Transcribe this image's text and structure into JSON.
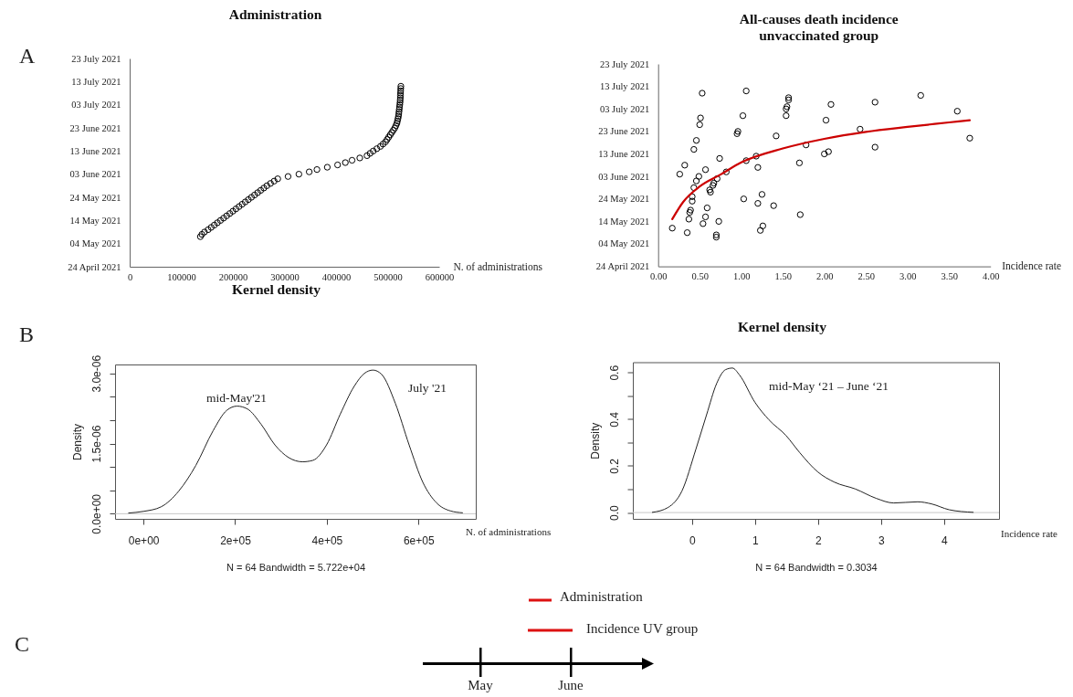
{
  "chart_data": [
    {
      "type": "scatter",
      "orientation": "horizontal",
      "title": "Administration",
      "xlabel": "N. of administrations",
      "marker": "circle",
      "xlim": [
        0,
        600000
      ],
      "xticks": [
        0,
        100000,
        200000,
        300000,
        400000,
        500000,
        600000
      ],
      "ylim": [
        "2021-04-24",
        "2021-07-23"
      ],
      "yticks": [
        {
          "value": "2021-04-24",
          "label": "24 April 2021"
        },
        {
          "value": "2021-05-04",
          "label": "04 May 2021"
        },
        {
          "value": "2021-05-14",
          "label": "14 May 2021"
        },
        {
          "value": "2021-05-24",
          "label": "24 May 2021"
        },
        {
          "value": "2021-06-03",
          "label": "03 June 2021"
        },
        {
          "value": "2021-06-13",
          "label": "13 June 2021"
        },
        {
          "value": "2021-06-23",
          "label": "23 June 2021"
        },
        {
          "value": "2021-07-03",
          "label": "03 July 2021"
        },
        {
          "value": "2021-07-13",
          "label": "13 July 2021"
        },
        {
          "value": "2021-07-23",
          "label": "23 July 2021"
        }
      ],
      "annotations": [
        "A"
      ],
      "series": [
        {
          "color": "#000000",
          "values": [
            137000,
            140000,
            145000,
            152000,
            158000,
            164000,
            170000,
            176000,
            182000,
            188000,
            194000,
            200000,
            206000,
            212000,
            218000,
            224000,
            230000,
            236000,
            242000,
            248000,
            254000,
            260000,
            266000,
            273000,
            280000,
            287000,
            307000,
            328000,
            348000,
            363000,
            383000,
            403000,
            418000,
            431000,
            446000,
            460000,
            466000,
            472000,
            479000,
            486000,
            491000,
            496000,
            499000,
            502000,
            505000,
            508000,
            511000,
            514000,
            516000,
            518000,
            519000,
            520000,
            521000,
            521500,
            522000,
            522500,
            523000,
            523500,
            524000,
            524300,
            524600,
            524800,
            525000,
            525200,
            525400,
            525600
          ],
          "x": [
            "2021-05-07",
            "2021-05-08",
            "2021-05-09",
            "2021-05-10",
            "2021-05-11",
            "2021-05-12",
            "2021-05-13",
            "2021-05-14",
            "2021-05-15",
            "2021-05-16",
            "2021-05-17",
            "2021-05-18",
            "2021-05-19",
            "2021-05-20",
            "2021-05-21",
            "2021-05-22",
            "2021-05-23",
            "2021-05-24",
            "2021-05-25",
            "2021-05-26",
            "2021-05-27",
            "2021-05-28",
            "2021-05-29",
            "2021-05-30",
            "2021-05-31",
            "2021-06-01",
            "2021-06-02",
            "2021-06-03",
            "2021-06-04",
            "2021-06-05",
            "2021-06-06",
            "2021-06-07",
            "2021-06-08",
            "2021-06-09",
            "2021-06-10",
            "2021-06-11",
            "2021-06-12",
            "2021-06-13",
            "2021-06-14",
            "2021-06-15",
            "2021-06-16",
            "2021-06-17",
            "2021-06-18",
            "2021-06-19",
            "2021-06-20",
            "2021-06-21",
            "2021-06-22",
            "2021-06-23",
            "2021-06-24",
            "2021-06-25",
            "2021-06-26",
            "2021-06-27",
            "2021-06-28",
            "2021-06-29",
            "2021-06-30",
            "2021-07-01",
            "2021-07-02",
            "2021-07-03",
            "2021-07-04",
            "2021-07-05",
            "2021-07-06",
            "2021-07-07",
            "2021-07-08",
            "2021-07-09",
            "2021-07-10",
            "2021-07-11"
          ]
        }
      ]
    },
    {
      "type": "scatter",
      "orientation": "horizontal",
      "title": "All-causes death incidence\nunvaccinated group",
      "xlabel": "Incidence rate",
      "marker": "circle",
      "xlim": [
        0,
        4
      ],
      "xticks": [
        {
          "value": 0,
          "label": "0.00"
        },
        {
          "value": 0.5,
          "label": "0.50"
        },
        {
          "value": 1,
          "label": "1.00"
        },
        {
          "value": 1.5,
          "label": "1.50"
        },
        {
          "value": 2,
          "label": "2.00"
        },
        {
          "value": 2.5,
          "label": "2.50"
        },
        {
          "value": 3,
          "label": "3.00"
        },
        {
          "value": 3.5,
          "label": "3.50"
        },
        {
          "value": 4,
          "label": "4.00"
        }
      ],
      "ylim": [
        "2021-04-24",
        "2021-07-23"
      ],
      "yticks": [
        {
          "value": "2021-04-24",
          "label": "24 April 2021"
        },
        {
          "value": "2021-05-04",
          "label": "04 May 2021"
        },
        {
          "value": "2021-05-14",
          "label": "14 May 2021"
        },
        {
          "value": "2021-05-24",
          "label": "24 May 2021"
        },
        {
          "value": "2021-06-03",
          "label": "03 June 2021"
        },
        {
          "value": "2021-06-13",
          "label": "13 June 2021"
        },
        {
          "value": "2021-06-23",
          "label": "23 June 2021"
        },
        {
          "value": "2021-07-03",
          "label": "03 July 2021"
        },
        {
          "value": "2021-07-13",
          "label": "13 July 2021"
        },
        {
          "value": "2021-07-23",
          "label": "23 July 2021"
        }
      ],
      "series": [
        {
          "color": "#000000",
          "values": [
            0.53,
            1.06,
            1.57,
            1.57,
            1.55,
            1.54,
            1.54,
            2.08,
            2.61,
            3.16,
            3.6,
            0.51,
            0.5,
            1.02,
            2.02,
            0.96,
            0.95,
            2.43,
            1.42,
            0.46,
            3.75,
            1.78,
            2.61,
            0.43,
            2.0,
            2.05,
            1.18,
            0.74,
            0.32,
            1.06,
            1.7,
            1.2,
            0.57,
            0.26,
            0.82,
            0.49,
            0.71,
            0.46,
            0.67,
            0.66,
            0.43,
            0.62,
            0.63,
            1.25,
            1.03,
            0.41,
            0.41,
            1.2,
            1.39,
            0.59,
            0.39,
            0.38,
            1.71,
            0.57,
            0.37,
            0.73,
            0.54,
            1.26,
            0.17,
            1.23,
            0.35,
            0.7,
            0.7
          ],
          "x": [
            "2021-07-10",
            "2021-07-11",
            "2021-07-08",
            "2021-07-07",
            "2021-07-04",
            "2021-07-03",
            "2021-06-30",
            "2021-07-05",
            "2021-07-06",
            "2021-07-09",
            "2021-07-02",
            "2021-06-29",
            "2021-06-26",
            "2021-06-30",
            "2021-06-28",
            "2021-06-23",
            "2021-06-22",
            "2021-06-24",
            "2021-06-21",
            "2021-06-19",
            "2021-06-20",
            "2021-06-17",
            "2021-06-16",
            "2021-06-15",
            "2021-06-13",
            "2021-06-14",
            "2021-06-12",
            "2021-06-11",
            "2021-06-08",
            "2021-06-10",
            "2021-06-09",
            "2021-06-07",
            "2021-06-06",
            "2021-06-04",
            "2021-06-05",
            "2021-06-03",
            "2021-06-02",
            "2021-06-01",
            "2021-05-31",
            "2021-05-30",
            "2021-05-29",
            "2021-05-28",
            "2021-05-27",
            "2021-05-26",
            "2021-05-24",
            "2021-05-25",
            "2021-05-23",
            "2021-05-22",
            "2021-05-21",
            "2021-05-20",
            "2021-05-19",
            "2021-05-18",
            "2021-05-17",
            "2021-05-16",
            "2021-05-15",
            "2021-05-14",
            "2021-05-13",
            "2021-05-12",
            "2021-05-11",
            "2021-05-10",
            "2021-05-09",
            "2021-05-08",
            "2021-05-07"
          ]
        },
        {
          "type": "line",
          "marker": "none",
          "color": "#cc0000",
          "values": [
            0.17,
            0.3,
            0.5,
            0.75,
            1.0,
            1.5,
            2.0,
            2.5,
            3.0,
            3.5,
            3.75
          ],
          "x": [
            "2021-05-15",
            "2021-05-22T14:00",
            "2021-05-29T12:00",
            "2021-06-03T19:00",
            "2021-06-09T05:00",
            "2021-06-15T10:00",
            "2021-06-19T17:00",
            "2021-06-22T19:00",
            "2021-06-25",
            "2021-06-27",
            "2021-06-28"
          ]
        }
      ]
    },
    {
      "type": "line",
      "title": "Kernel density",
      "xlabel": "N = 64   Bandwidth = 5.722e+04",
      "ylabel": "Density",
      "xlim": [
        -62000,
        725000
      ],
      "xticks": [
        {
          "value": 0,
          "label": "0e+00"
        },
        {
          "value": 200000,
          "label": "2e+05"
        },
        {
          "value": 400000,
          "label": "4e+05"
        },
        {
          "value": 600000,
          "label": "6e+05"
        }
      ],
      "ylim": [
        -1.1e-07,
        3.19e-06
      ],
      "yticks": [
        {
          "value": 0,
          "label": "0.0e+00"
        },
        {
          "value": 5e-07,
          "label": null
        },
        {
          "value": 1e-06,
          "label": null
        },
        {
          "value": 1.5e-06,
          "label": "1.5e-06"
        },
        {
          "value": 2e-06,
          "label": null
        },
        {
          "value": 2.5e-06,
          "label": null
        },
        {
          "value": 3e-06,
          "label": "3.0e-06"
        }
      ],
      "ref_lines": [
        {
          "axis": "y",
          "value": 0,
          "color": "#c8c8c8"
        }
      ],
      "annotations": [
        "B",
        "mid-May'21",
        "July '21",
        "N. of administrations"
      ],
      "series": [
        {
          "color": "#222222",
          "x": [
            -32300,
            0,
            39000,
            76600,
            114100,
            151700,
            181700,
            204200,
            226700,
            256800,
            286800,
            316800,
            346800,
            369400,
            399400,
            429400,
            459500,
            482000,
            500800,
            519500,
            549500,
            579600,
            609600,
            639600,
            669700,
            696000
          ],
          "values": [
            1.5e-08,
            5e-08,
            1.5e-07,
            4.8e-07,
            1.03e-06,
            1.77e-06,
            2.21e-06,
            2.3e-06,
            2.24e-06,
            1.91e-06,
            1.47e-06,
            1.2e-06,
            1.11e-06,
            1.14e-06,
            1.47e-06,
            2.13e-06,
            2.72e-06,
            3e-06,
            3.07e-06,
            2.98e-06,
            2.36e-06,
            1.47e-06,
            6.7e-07,
            2.3e-07,
            6e-08,
            2e-08
          ]
        }
      ]
    },
    {
      "type": "line",
      "title": "Kernel density",
      "xlabel": "N = 64   Bandwidth = 0.3034",
      "ylabel": "Density",
      "xlim": [
        -0.94,
        4.87
      ],
      "xticks": [
        0,
        1,
        2,
        3,
        4
      ],
      "ylim": [
        -0.027,
        0.644
      ],
      "yticks": [
        {
          "value": 0,
          "label": "0.0"
        },
        {
          "value": 0.1,
          "label": null
        },
        {
          "value": 0.2,
          "label": "0.2"
        },
        {
          "value": 0.3,
          "label": null
        },
        {
          "value": 0.4,
          "label": "0.4"
        },
        {
          "value": 0.5,
          "label": null
        },
        {
          "value": 0.6,
          "label": "0.6"
        }
      ],
      "ref_lines": [
        {
          "axis": "y",
          "value": 0,
          "color": "#c8c8c8"
        }
      ],
      "annotations": [
        "mid-May ‘21 – June ‘21",
        "Incidence rate"
      ],
      "series": [
        {
          "color": "#222222",
          "x": [
            -0.63,
            -0.38,
            -0.16,
            0.06,
            0.23,
            0.39,
            0.53,
            0.64,
            0.75,
            1.0,
            1.22,
            1.49,
            1.71,
            1.99,
            2.26,
            2.59,
            2.92,
            3.2,
            3.58,
            3.8,
            4.08,
            4.46
          ],
          "values": [
            0.001,
            0.022,
            0.093,
            0.271,
            0.419,
            0.553,
            0.612,
            0.619,
            0.59,
            0.471,
            0.397,
            0.33,
            0.256,
            0.175,
            0.13,
            0.101,
            0.061,
            0.041,
            0.046,
            0.037,
            0.012,
            0.001
          ]
        }
      ]
    },
    {
      "type": "other",
      "annotations": [
        "C",
        "Administration",
        "Incidence UV group",
        "May",
        "June"
      ]
    }
  ]
}
